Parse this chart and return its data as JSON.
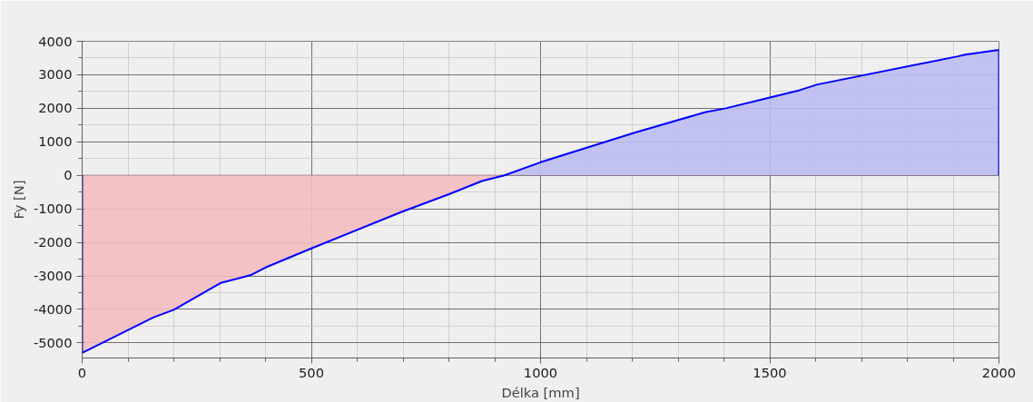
{
  "chart_data": {
    "type": "area",
    "xlabel": "Délka [mm]",
    "ylabel": "Fy [N]",
    "series": [
      {
        "color": "#f2bcbf",
        "x": [
          0,
          155,
          200,
          302,
          367,
          400,
          500,
          697,
          799,
          872,
          921
        ],
        "values": [
          -5300,
          -4240,
          -4010,
          -3210,
          -2980,
          -2750,
          -2180,
          -1090,
          -570,
          -170,
          0
        ]
      },
      {
        "color": "#bcbcf2",
        "x": [
          921,
          1000,
          1205,
          1358,
          1404,
          1500,
          1565,
          1604,
          1910,
          1926,
          2000
        ],
        "values": [
          0,
          390,
          1270,
          1880,
          2000,
          2320,
          2540,
          2710,
          3550,
          3600,
          3740
        ]
      },
      {
        "type": "line",
        "color": "#0000ff",
        "x": [
          0,
          0,
          155,
          200,
          302,
          367,
          400,
          500,
          697,
          799,
          872,
          921,
          1000,
          1205,
          1358,
          1404,
          1500,
          1565,
          1604,
          1910,
          1926,
          2000,
          2000
        ],
        "values": [
          0,
          -5300,
          -4240,
          -4010,
          -3210,
          -2980,
          -2750,
          -2180,
          -1090,
          -570,
          -170,
          0,
          390,
          1270,
          1880,
          2000,
          2320,
          2540,
          2710,
          3550,
          3600,
          3740,
          0
        ]
      }
    ],
    "xlim": [
      0,
      2000
    ],
    "ylim": [
      -5450,
      4000
    ],
    "xticks": [
      0,
      500,
      1000,
      1500,
      2000
    ],
    "yticks": [
      -5000,
      -4000,
      -3000,
      -2000,
      -1000,
      0,
      1000,
      2000,
      3000,
      4000
    ],
    "grid": true
  }
}
